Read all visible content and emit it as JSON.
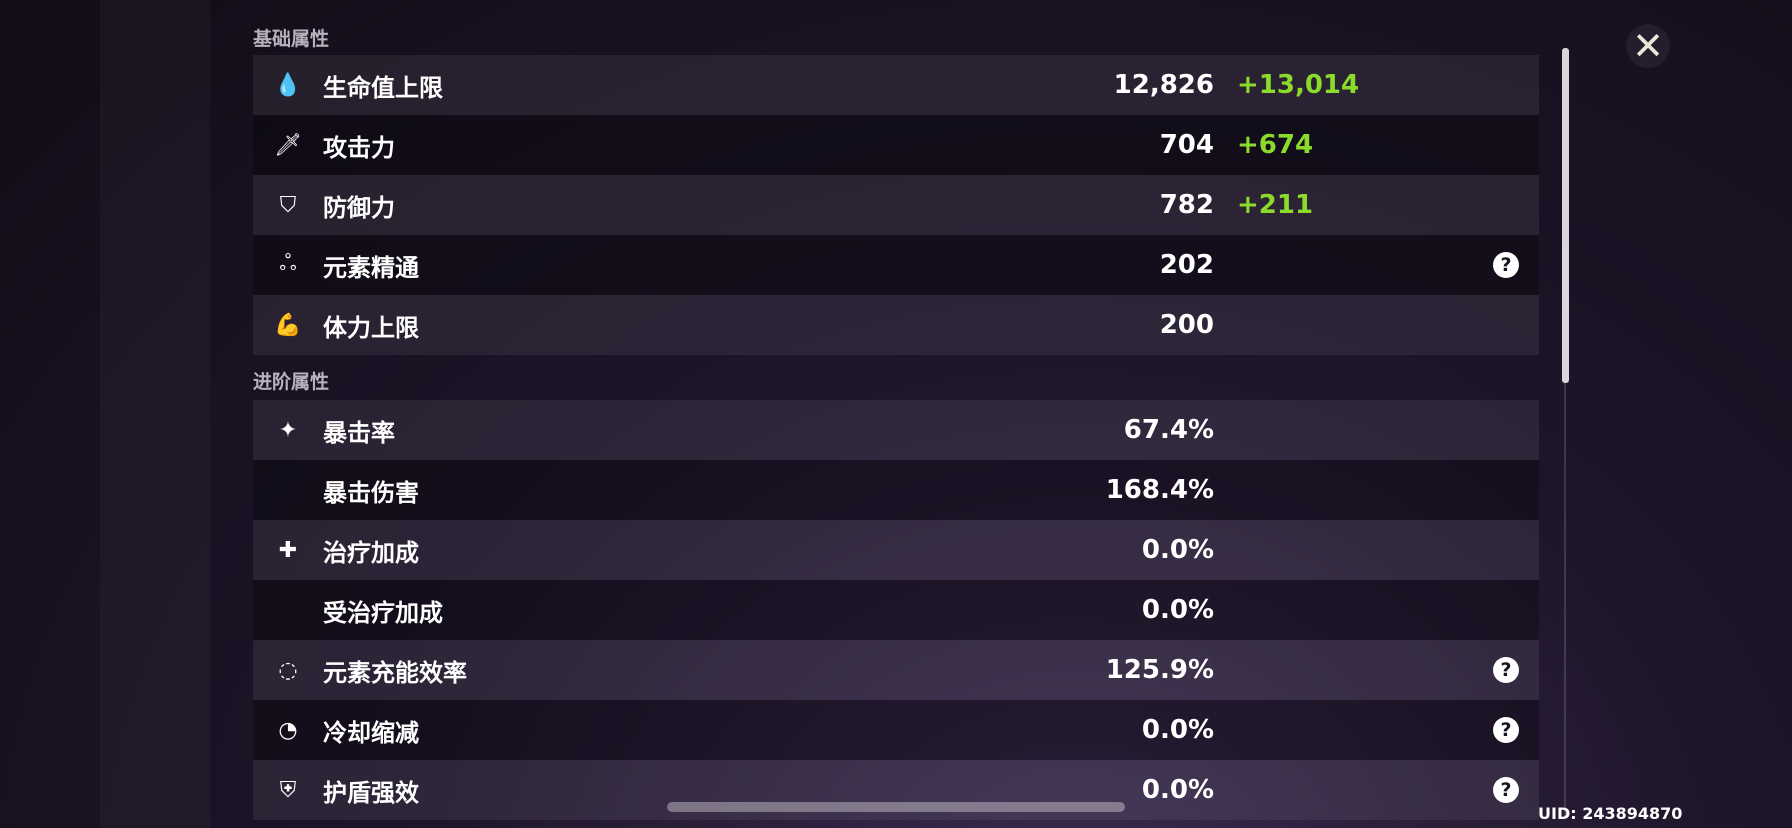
{
  "basic": {
    "title": "基础属性",
    "rows": [
      {
        "icon": "hp-drop-icon",
        "glyph": "💧",
        "label": "生命值上限",
        "value": "12,826",
        "bonus": "+13,014",
        "help": false
      },
      {
        "icon": "sword-icon",
        "glyph": "🗡",
        "label": "攻击力",
        "value": "704",
        "bonus": "+674",
        "help": false
      },
      {
        "icon": "shield-icon",
        "glyph": "⛉",
        "label": "防御力",
        "value": "782",
        "bonus": "+211",
        "help": false
      },
      {
        "icon": "elemental-mastery-icon",
        "glyph": "ஃ",
        "label": "元素精通",
        "value": "202",
        "bonus": "",
        "help": true
      },
      {
        "icon": "stamina-icon",
        "glyph": "💪",
        "label": "体力上限",
        "value": "200",
        "bonus": "",
        "help": false
      }
    ]
  },
  "advanced": {
    "title": "进阶属性",
    "rows": [
      {
        "icon": "crit-rate-icon",
        "glyph": "✦",
        "label": "暴击率",
        "value": "67.4%",
        "help": false
      },
      {
        "icon": "",
        "glyph": "",
        "label": "暴击伤害",
        "value": "168.4%",
        "help": false
      },
      {
        "icon": "healing-cross-icon",
        "glyph": "✚",
        "label": "治疗加成",
        "value": "0.0%",
        "help": false
      },
      {
        "icon": "",
        "glyph": "",
        "label": "受治疗加成",
        "value": "0.0%",
        "help": false
      },
      {
        "icon": "energy-recharge-icon",
        "glyph": "◌",
        "label": "元素充能效率",
        "value": "125.9%",
        "help": true
      },
      {
        "icon": "cooldown-icon",
        "glyph": "◔",
        "label": "冷却缩减",
        "value": "0.0%",
        "help": true
      },
      {
        "icon": "shield-strength-icon",
        "glyph": "⛨",
        "label": "护盾强效",
        "value": "0.0%",
        "help": true
      }
    ]
  },
  "help_glyph": "?",
  "close_glyph": "✕",
  "uid": "UID: 243894870",
  "colors": {
    "bonus": "#8bdc2a"
  }
}
